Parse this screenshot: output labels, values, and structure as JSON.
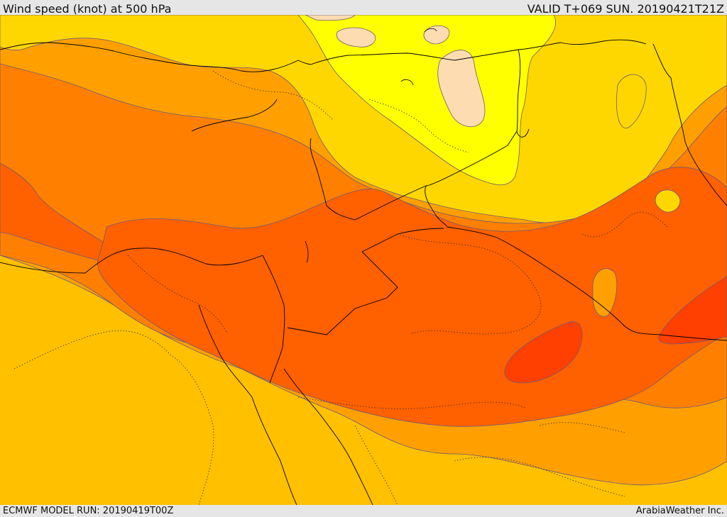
{
  "header": {
    "title": "Wind speed (knot) at 500 hPa",
    "valid_time": "VALID T+069 SUN. 20190421T21Z"
  },
  "footer": {
    "model_run": "ECMWF MODEL RUN: 20190419T00Z",
    "credit": "ArabiaWeather Inc."
  },
  "colors": {
    "speed_band_1": "#fcdcb0",
    "speed_band_2": "#ffff00",
    "speed_band_3": "#ffd700",
    "speed_band_4": "#ffc000",
    "speed_band_5": "#ffa000",
    "speed_band_6": "#ff8000",
    "speed_band_7": "#ff6000",
    "speed_band_8": "#ff4000",
    "contour_line": "#6d5a7a",
    "border_line": "#000000"
  }
}
